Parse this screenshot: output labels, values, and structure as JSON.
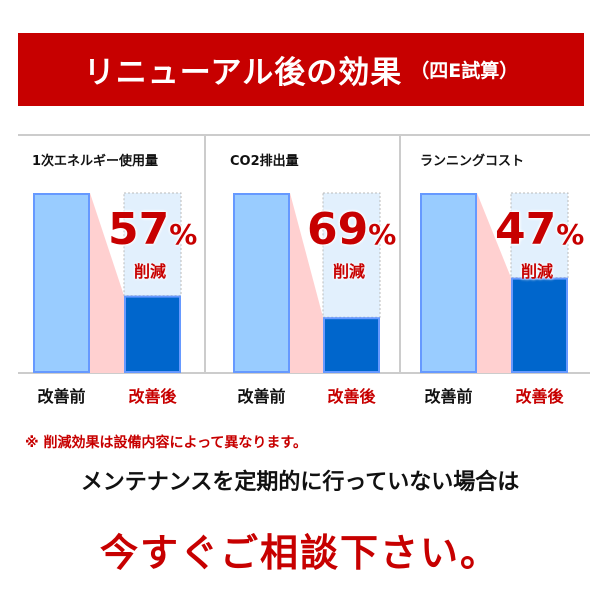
{
  "header": {
    "title": "リニューアル後の効果",
    "subtitle": "（四E試算）"
  },
  "colors": {
    "accent": "#c70000",
    "before_bar": "#99ccff",
    "after_bar": "#0066cc",
    "bar_border": "#6699ff",
    "reduction_fill": "#ffd0d0",
    "ghost": "#e2f0fd"
  },
  "chart_data": [
    {
      "type": "bar",
      "title": "1次エネルギー使用量",
      "categories": [
        "改善前",
        "改善後"
      ],
      "values": [
        100,
        43
      ],
      "reduction_value": "57",
      "reduction_unit": "%",
      "reduction_label": "削減",
      "ylim": [
        0,
        100
      ]
    },
    {
      "type": "bar",
      "title": "CO2排出量",
      "categories": [
        "改善前",
        "改善後"
      ],
      "values": [
        100,
        31
      ],
      "reduction_value": "69",
      "reduction_unit": "%",
      "reduction_label": "削減",
      "ylim": [
        0,
        100
      ]
    },
    {
      "type": "bar",
      "title": "ランニングコスト",
      "categories": [
        "改善前",
        "改善後"
      ],
      "values": [
        100,
        53
      ],
      "reduction_value": "47",
      "reduction_unit": "%",
      "reduction_label": "削減",
      "ylim": [
        0,
        100
      ]
    }
  ],
  "footer": {
    "note": "※ 削減効果は設備内容によって異なります。",
    "message": "メンテナンスを定期的に行っていない場合は",
    "cta": "今すぐご相談下さい。"
  }
}
